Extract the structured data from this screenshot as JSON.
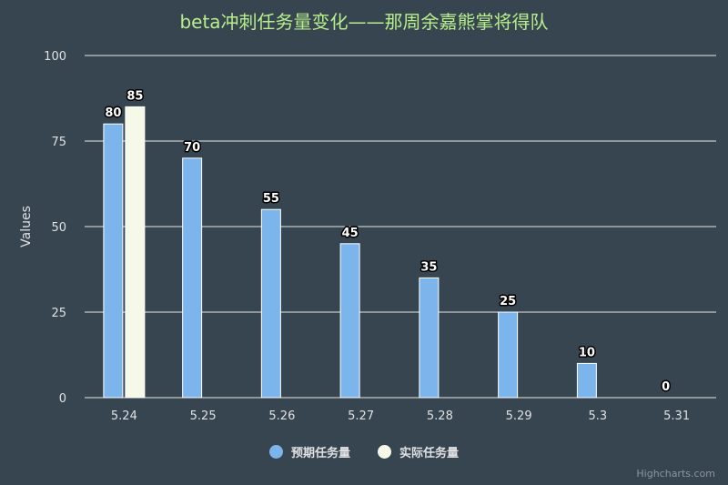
{
  "chart_data": {
    "type": "bar",
    "title": "beta冲刺任务量变化——那周余嘉熊掌将得队",
    "ylabel": "Values",
    "xlabel": "",
    "ylim": [
      0,
      100
    ],
    "yticks": [
      0,
      25,
      50,
      75,
      100
    ],
    "categories": [
      "5.24",
      "5.25",
      "5.26",
      "5.27",
      "5.28",
      "5.29",
      "5.3",
      "5.31"
    ],
    "series": [
      {
        "name": "预期任务量",
        "color": "#7cb5ec",
        "values": [
          80,
          70,
          55,
          45,
          35,
          25,
          10,
          0
        ]
      },
      {
        "name": "实际任务量",
        "color": "#f7f9e8",
        "values": [
          85,
          null,
          null,
          null,
          null,
          null,
          null,
          null
        ]
      }
    ],
    "grid": true,
    "legend_position": "bottom-center"
  },
  "credits": "Highcharts.com"
}
